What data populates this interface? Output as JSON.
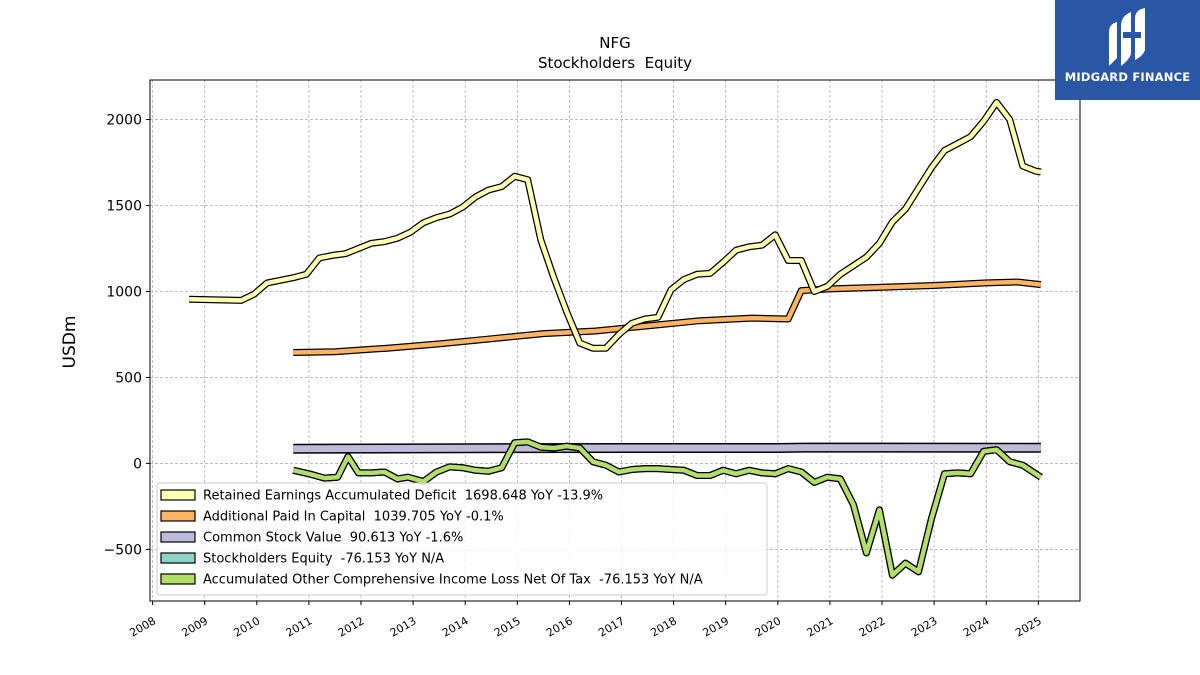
{
  "brand": {
    "name": "MIDGARD FINANCE"
  },
  "chart_data": {
    "type": "line",
    "title": "NFG",
    "subtitle": "Stockholders  Equity",
    "ylabel": "USDm",
    "xlabel": "",
    "ylim": [
      -800,
      2230
    ],
    "xlim": [
      2007.95,
      2025.8
    ],
    "yticks": [
      -500,
      0,
      500,
      1000,
      1500,
      2000
    ],
    "yticklabels": [
      "−500",
      "0",
      "500",
      "1000",
      "1500",
      "2000"
    ],
    "xticks": [
      2008,
      2009,
      2010,
      2011,
      2012,
      2013,
      2014,
      2015,
      2016,
      2017,
      2018,
      2019,
      2020,
      2021,
      2022,
      2023,
      2024,
      2025
    ],
    "xticklabels": [
      "2008",
      "2009",
      "2010",
      "2011",
      "2012",
      "2013",
      "2014",
      "2015",
      "2016",
      "2017",
      "2018",
      "2019",
      "2020",
      "2021",
      "2022",
      "2023",
      "2024",
      "2025"
    ],
    "grid": true,
    "legend_position": "lower-left",
    "series": [
      {
        "name": "Retained Earnings Accumulated Deficit",
        "legend_label": "Retained Earnings Accumulated Deficit  1698.648 YoY -13.9%",
        "color": "#ffffb3",
        "x": [
          2008.7,
          2009.7,
          2009.95,
          2010.2,
          2010.45,
          2010.7,
          2010.95,
          2011.2,
          2011.45,
          2011.7,
          2011.95,
          2012.2,
          2012.45,
          2012.7,
          2012.95,
          2013.2,
          2013.45,
          2013.7,
          2013.95,
          2014.2,
          2014.45,
          2014.7,
          2014.95,
          2015.2,
          2015.45,
          2015.7,
          2015.95,
          2016.2,
          2016.45,
          2016.7,
          2016.95,
          2017.2,
          2017.45,
          2017.7,
          2017.95,
          2018.2,
          2018.45,
          2018.7,
          2018.95,
          2019.2,
          2019.45,
          2019.7,
          2019.95,
          2020.2,
          2020.45,
          2020.7,
          2020.95,
          2021.2,
          2021.45,
          2021.7,
          2021.95,
          2022.2,
          2022.45,
          2022.7,
          2022.95,
          2023.2,
          2023.45,
          2023.7,
          2023.95,
          2024.2,
          2024.45,
          2024.7,
          2024.95,
          2025.05
        ],
        "values": [
          955,
          948,
          985,
          1050,
          1065,
          1080,
          1100,
          1195,
          1210,
          1220,
          1250,
          1280,
          1290,
          1310,
          1345,
          1400,
          1430,
          1450,
          1490,
          1550,
          1590,
          1610,
          1670,
          1650,
          1300,
          1080,
          880,
          700,
          670,
          670,
          750,
          815,
          840,
          850,
          1010,
          1070,
          1100,
          1105,
          1170,
          1240,
          1260,
          1270,
          1330,
          1180,
          1180,
          1000,
          1030,
          1100,
          1150,
          1200,
          1280,
          1405,
          1480,
          1600,
          1720,
          1820,
          1860,
          1900,
          1990,
          2100,
          2000,
          1730,
          1700,
          1695
        ]
      },
      {
        "name": "Additional Paid In Capital",
        "legend_label": "Additional Paid In Capital  1039.705 YoY -0.1%",
        "color": "#fdb462",
        "x": [
          2010.7,
          2011.5,
          2012.5,
          2013.5,
          2014.5,
          2015.5,
          2016.5,
          2017.5,
          2018.5,
          2019.5,
          2020.2,
          2020.45,
          2021.0,
          2022.0,
          2023.0,
          2024.0,
          2024.6,
          2025.05
        ],
        "values": [
          645,
          650,
          670,
          695,
          725,
          755,
          770,
          800,
          830,
          845,
          840,
          1005,
          1015,
          1025,
          1035,
          1050,
          1055,
          1040
        ]
      },
      {
        "name": "Common Stock Value",
        "legend_label": "Common Stock Value  90.613 YoY -1.6%",
        "color": "#bebada",
        "x": [
          2010.7,
          2015.0,
          2020.0,
          2020.5,
          2025.05
        ],
        "values": [
          86,
          89,
          90,
          92,
          91
        ]
      },
      {
        "name": "Stockholders Equity",
        "legend_label": "Stockholders Equity  -76.153 YoY N/A",
        "color": "#8dd3c7",
        "x": [
          2010.7,
          2011.0,
          2011.3,
          2011.55,
          2011.75,
          2011.95,
          2012.2,
          2012.45,
          2012.7,
          2012.9,
          2013.2,
          2013.45,
          2013.7,
          2013.95,
          2014.2,
          2014.45,
          2014.7,
          2014.95,
          2015.2,
          2015.45,
          2015.7,
          2015.95,
          2016.2,
          2016.45,
          2016.7,
          2016.95,
          2017.2,
          2017.45,
          2017.7,
          2017.95,
          2018.2,
          2018.45,
          2018.7,
          2018.95,
          2019.2,
          2019.45,
          2019.7,
          2019.95,
          2020.2,
          2020.45,
          2020.7,
          2020.95,
          2021.2,
          2021.45,
          2021.7,
          2021.95,
          2022.2,
          2022.45,
          2022.7,
          2022.95,
          2023.2,
          2023.45,
          2023.7,
          2023.95,
          2024.2,
          2024.45,
          2024.7,
          2025.05
        ],
        "values": [
          -40,
          -60,
          -85,
          -80,
          40,
          -55,
          -55,
          -50,
          -90,
          -80,
          -105,
          -50,
          -20,
          -25,
          -40,
          -45,
          -25,
          120,
          125,
          95,
          90,
          100,
          90,
          10,
          -10,
          -50,
          -35,
          -30,
          -30,
          -35,
          -40,
          -70,
          -70,
          -40,
          -60,
          -40,
          -55,
          -60,
          -30,
          -50,
          -110,
          -80,
          -90,
          -240,
          -520,
          -270,
          -650,
          -580,
          -630,
          -320,
          -60,
          -55,
          -60,
          70,
          80,
          10,
          -10,
          -80
        ]
      },
      {
        "name": "Accumulated Other Comprehensive Income Loss Net Of Tax",
        "legend_label": "Accumulated Other Comprehensive Income Loss Net Of Tax  -76.153 YoY N/A",
        "color": "#b3de69",
        "x": [
          2010.7,
          2011.0,
          2011.3,
          2011.55,
          2011.75,
          2011.95,
          2012.2,
          2012.45,
          2012.7,
          2012.9,
          2013.2,
          2013.45,
          2013.7,
          2013.95,
          2014.2,
          2014.45,
          2014.7,
          2014.95,
          2015.2,
          2015.45,
          2015.7,
          2015.95,
          2016.2,
          2016.45,
          2016.7,
          2016.95,
          2017.2,
          2017.45,
          2017.7,
          2017.95,
          2018.2,
          2018.45,
          2018.7,
          2018.95,
          2019.2,
          2019.45,
          2019.7,
          2019.95,
          2020.2,
          2020.45,
          2020.7,
          2020.95,
          2021.2,
          2021.45,
          2021.7,
          2021.95,
          2022.2,
          2022.45,
          2022.7,
          2022.95,
          2023.2,
          2023.45,
          2023.7,
          2023.95,
          2024.2,
          2024.45,
          2024.7,
          2025.05
        ],
        "values": [
          -40,
          -60,
          -85,
          -80,
          40,
          -55,
          -55,
          -50,
          -90,
          -80,
          -105,
          -50,
          -20,
          -25,
          -40,
          -45,
          -25,
          120,
          125,
          95,
          90,
          100,
          90,
          10,
          -10,
          -50,
          -35,
          -30,
          -30,
          -35,
          -40,
          -70,
          -70,
          -40,
          -60,
          -40,
          -55,
          -60,
          -30,
          -50,
          -110,
          -80,
          -90,
          -240,
          -520,
          -270,
          -650,
          -580,
          -630,
          -320,
          -60,
          -55,
          -60,
          70,
          80,
          10,
          -10,
          -80
        ]
      }
    ]
  }
}
